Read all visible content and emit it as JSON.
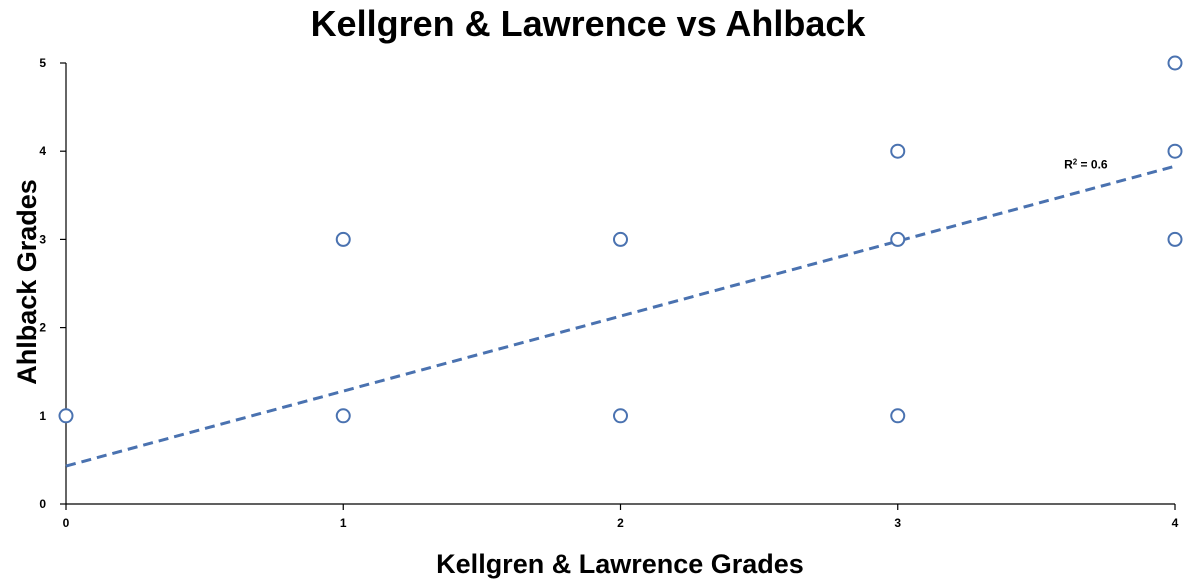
{
  "chart_data": {
    "type": "scatter",
    "title": "Kellgren & Lawrence vs Ahlback",
    "xlabel": "Kellgren & Lawrence Grades",
    "ylabel": "Ahlback Grades",
    "xlim": [
      0,
      4
    ],
    "ylim": [
      0,
      5
    ],
    "x_ticks": [
      "0",
      "1",
      "2",
      "3",
      "4"
    ],
    "y_ticks": [
      "0",
      "1",
      "2",
      "3",
      "4",
      "5"
    ],
    "grid": false,
    "series": [
      {
        "points": [
          {
            "x": 0,
            "y": 1
          },
          {
            "x": 1,
            "y": 1
          },
          {
            "x": 1,
            "y": 3
          },
          {
            "x": 2,
            "y": 1
          },
          {
            "x": 2,
            "y": 3
          },
          {
            "x": 3,
            "y": 1
          },
          {
            "x": 3,
            "y": 3
          },
          {
            "x": 3,
            "y": 4
          },
          {
            "x": 4,
            "y": 3
          },
          {
            "x": 4,
            "y": 4
          },
          {
            "x": 4,
            "y": 5
          }
        ]
      }
    ],
    "trendline": {
      "type": "linear",
      "style": "dashed",
      "intercept": 0.43,
      "slope": 0.85,
      "r_squared_label": "R",
      "r_squared_sup": "2",
      "r_squared_value": " = 0.6"
    },
    "colors": {
      "marker": "#4a72b0",
      "trendline": "#4a72b0",
      "axis": "#000000"
    }
  }
}
